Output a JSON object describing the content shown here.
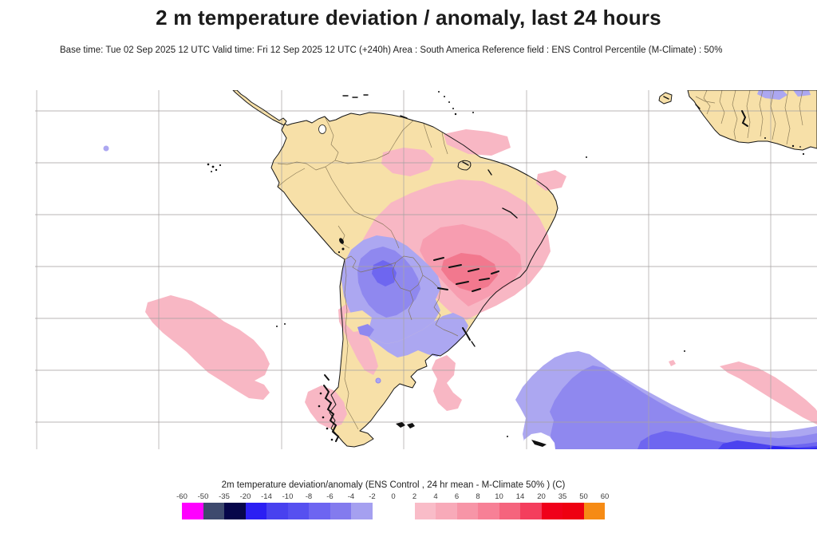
{
  "header": {
    "title": "2 m temperature deviation / anomaly, last 24 hours",
    "subtitle": "Base time: Tue 02 Sep 2025 12 UTC Valid time: Fri 12 Sep 2025 12 UTC (+240h) Area : South America Reference field : ENS Control Percentile (M-Climate) : 50%"
  },
  "map": {
    "region": "South America",
    "anomaly_regions": [
      {
        "sign": "negative",
        "location": "Paraguay / Bolivia / northern Argentina / southern Brazil",
        "approx_range_c": "-2 to -8"
      },
      {
        "sign": "negative",
        "location": "South Atlantic (large offshore area, deepening to the south-east)",
        "approx_range_c": "-2 to -14"
      },
      {
        "sign": "positive",
        "location": "central and eastern Brazil (core near Sao Paulo)",
        "approx_range_c": "2 to 10"
      },
      {
        "sign": "positive",
        "location": "south-east Pacific band west of Chile",
        "approx_range_c": "2 to 4"
      },
      {
        "sign": "positive",
        "location": "southern Chile / Patagonia",
        "approx_range_c": "2 to 4"
      },
      {
        "sign": "positive",
        "location": "tropical Atlantic near West Africa",
        "approx_range_c": "2 to 4"
      }
    ]
  },
  "legend": {
    "title": "2m temperature deviation/anomaly (ENS Control , 24 hr mean - M-Climate 50% ) (C)",
    "unit": "C",
    "ticks": [
      "-60",
      "-50",
      "-35",
      "-20",
      "-14",
      "-10",
      "-8",
      "-6",
      "-4",
      "-2",
      "0",
      "2",
      "4",
      "6",
      "8",
      "10",
      "14",
      "20",
      "35",
      "50",
      "60"
    ],
    "cells": [
      "#FF00FF",
      "#3E4A6E",
      "#06064A",
      "#2B1FF3",
      "#4841EF",
      "#5650F0",
      "#6D65F1",
      "#837BEE",
      "#A5A0F0",
      "transparent",
      "transparent",
      "#F9BCC8",
      "#F8AAB9",
      "#F795A7",
      "#F78096",
      "#F5647D",
      "#F43E5D",
      "#F0001A",
      "#EE0011",
      "#F68B15"
    ]
  },
  "theme": {
    "land": "#F7E0A8",
    "ocean": "#FFFFFF",
    "grid": "#A8A3A3",
    "coast": "#161616",
    "border": "#7E6F4E",
    "neg1": "#ACA7F1",
    "neg2": "#8F88EF",
    "neg3": "#6E66F0",
    "neg4": "#4B43EF",
    "neg5": "#2F27F2",
    "pos1": "#F8B7C4",
    "pos2": "#F79DB0",
    "pos3": "#F2788E",
    "text": "#1B1B1B"
  }
}
